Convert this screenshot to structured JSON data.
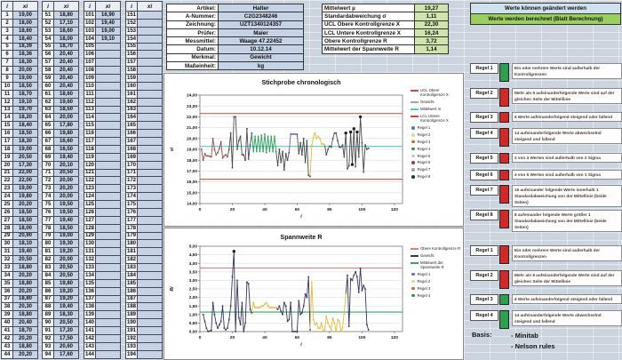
{
  "table": {
    "headers": {
      "index": "i",
      "value": "xi"
    },
    "groups": [
      {
        "start": 1
      },
      {
        "start": 51
      },
      {
        "start": 101
      },
      {
        "start": 151
      }
    ],
    "rows_visible": 44
  },
  "form": {
    "rows": [
      {
        "label": "Artikel:",
        "value": "Halter"
      },
      {
        "label": "A-Nummer:",
        "value": "C2G2348246"
      },
      {
        "label": "Zeichnung:",
        "value": "UZT1340124357"
      },
      {
        "label": "Prüfer:",
        "value": "Maier"
      },
      {
        "label": "Messmittel:",
        "value": "Waage 47.22452"
      },
      {
        "label": "Datum:",
        "value": "10.12.14"
      },
      {
        "label": "Merkmal:",
        "value": "Gewicht"
      },
      {
        "label": "Maßeinheit:",
        "value": "kg"
      }
    ]
  },
  "stats": {
    "rows": [
      {
        "label": "Mittelwert µ",
        "value": "19,27"
      },
      {
        "label": "Standardabweichung σ",
        "value": "1,11"
      },
      {
        "label": "UCL Obere Kontrollgrenze X",
        "value": "22,30"
      },
      {
        "label": "LCL Untere Kontrollgrenze X",
        "value": "16,24"
      },
      {
        "label": "Obere Kontrollgrenze R",
        "value": "3,72"
      },
      {
        "label": "Mittelwert der Spannweite R",
        "value": "1,14"
      }
    ]
  },
  "banner": {
    "line1": "Werte können geändert werden",
    "line2": "Werte werden berechnet (Blatt Berechnung)"
  },
  "colors": {
    "ok": "#2f9e4e",
    "violated": "#cf2a27",
    "cell_blue": "#c6d3e6",
    "cell_green": "#cfe5ad",
    "banner_blue": "#cfe0ef",
    "banner_green": "#9ace5e"
  },
  "rules_x": [
    {
      "name": "Regel 1",
      "status": "ok",
      "text": "Ein oder mehrere Werte sind außerhalb der Kontrollgrenzen"
    },
    {
      "name": "Regel 2",
      "status": "violated",
      "text": "Mehr als 9 aufeinanderfolgende Werte sind auf der gleichen Seite der Mittellinie"
    },
    {
      "name": "Regel 3",
      "status": "violated",
      "text": "6 Werte aufeinanderfolgend steigend oder fallend"
    },
    {
      "name": "Regel 4",
      "status": "violated",
      "text": "14 aufeinanderfolgende Werte abwechselnd steigend und fallend"
    },
    {
      "name": "Regel 5",
      "status": "violated",
      "text": "2 von 3 Werten sind außerhalb von 2 Sigma"
    },
    {
      "name": "Regel 6",
      "status": "violated",
      "text": "4 von 5 Werten sind außerhalb von 1 Sigma"
    },
    {
      "name": "Regel 7",
      "status": "violated",
      "text": "15 aufeinander folgende Werte innerhalb 1 Standardabweichung von der Mittellinie (beide Seiten)"
    },
    {
      "name": "Regel 8",
      "status": "violated",
      "text": "8 aufeinander folgende Werte größer 1 Standardabweichung von der Mittellinie (beide Seiten)"
    }
  ],
  "rules_r": [
    {
      "name": "Regel 1",
      "status": "violated",
      "text": "Ein oder mehrere Werte sind außerhalb der Kontrollgrenzen"
    },
    {
      "name": "Regel 2",
      "status": "violated",
      "text": "Mehr als 9 aufeinanderfolgende Werte sind auf der gleichen Seite der Mittellinie"
    },
    {
      "name": "Regel 3",
      "status": "ok",
      "text": "6 Werte aufeinanderfolgend steigend oder fallend"
    },
    {
      "name": "Regel 4",
      "status": "ok",
      "text": "14 aufeinanderfolgende Werte abwechselnd steigend und fallend"
    }
  ],
  "basis": {
    "label": "Basis:",
    "items": [
      "- Minitab",
      "- Nelson rules"
    ]
  },
  "chart_data": [
    {
      "type": "line",
      "title": "Stichprobe chronologisch",
      "xlabel": "i",
      "ylabel": "xi",
      "ylim": [
        14,
        24
      ],
      "ytick": 1,
      "xlim": [
        0,
        125
      ],
      "xticks": [
        0,
        20,
        40,
        60,
        80,
        100,
        120
      ],
      "grid": true,
      "legend_position": "right",
      "series": [
        {
          "name": "Gewicht",
          "color": "#4a4a4a",
          "x_start": 1,
          "values": [
            19.0,
            18.0,
            18.6,
            18.4,
            18.39,
            18.36,
            18.3,
            20.0,
            19.0,
            18.5,
            18.7,
            19.1,
            19.7,
            18.2,
            18.4,
            18.5,
            18.3,
            19.0,
            20.5,
            17.3,
            22.0,
            22.0,
            19.0,
            19.8,
            20.2,
            18.5,
            18.5,
            18.0,
            20.9,
            18.1,
            19.4,
            20.5,
            18.8,
            20.2,
            18.8,
            20.2,
            18.8,
            20.3,
            18.8,
            20.4,
            18.7,
            20.2,
            18.8,
            20.2,
            18.8,
            20.2,
            18.8,
            17.5,
            19.0,
            17.8,
            18.8,
            17.1,
            18.6,
            18.0,
            18.7,
            20.4,
            20.4,
            20.4,
            20.4,
            20.4,
            18.6,
            19.6,
            18.5,
            20.0,
            17.8,
            19.8,
            16.6,
            16.5,
            19.4,
            20.1,
            20.5,
            20.0,
            20.2,
            20.0,
            19.5,
            19.5,
            19.4,
            18.5,
            19.0,
            19.3,
            19.2,
            20.0,
            20.5,
            20.5,
            19.8,
            19.2,
            19.2,
            19.4,
            18.3,
            20.5,
            17.2,
            17.5,
            20.6,
            17.6,
            20.9,
            17.4,
            20.6,
            18.3,
            22.0,
            19.6,
            16.9,
            19.4,
            19.0,
            19.1
          ]
        }
      ],
      "ref_lines": [
        {
          "name": "UCL Obere Kontrollgrenze X",
          "value": 22.3,
          "color": "#c94a42"
        },
        {
          "name": "Mittelwert m",
          "value": 19.27,
          "color": "#56c7cb"
        },
        {
          "name": "LCL Untere Kontrollgrenze X",
          "value": 16.24,
          "color": "#c94a42"
        }
      ],
      "rule_segments": [
        {
          "from": 1,
          "to": 17,
          "color": "#a04848"
        },
        {
          "from": 33,
          "to": 47,
          "color": "#2f9e5e"
        },
        {
          "from": 56,
          "to": 60,
          "color": "#6a58a8"
        },
        {
          "from": 69,
          "to": 77,
          "color": "#e3ba3f"
        }
      ],
      "violation_dots": {
        "color": "#222222",
        "at": [
          90,
          93,
          94,
          95,
          97,
          99
        ]
      },
      "legend": [
        {
          "swatch": "line",
          "color": "#c94a42",
          "label": "UCL Obere Kontrollgrenze X"
        },
        {
          "swatch": "line",
          "color": "#a6a6a6",
          "label": "Gewicht"
        },
        {
          "swatch": "line",
          "color": "#56c7cb",
          "label": "Mittelwert m"
        },
        {
          "swatch": "line",
          "color": "#c94a42",
          "label": "LCL Untere Kontrollgrenze X"
        },
        {
          "swatch": "dot",
          "color": "#5b79a6",
          "label": "Regel 1"
        },
        {
          "swatch": "dot",
          "color": "#e6d690",
          "label": "Regel 2"
        },
        {
          "swatch": "dot",
          "color": "#cc6a2e",
          "label": "Regel 3"
        },
        {
          "swatch": "dot",
          "color": "#3a8a5a",
          "label": "Regel 4"
        },
        {
          "swatch": "dot",
          "color": "#c4c4d4",
          "label": "Regel 5"
        },
        {
          "swatch": "dot",
          "color": "#9a4040",
          "label": "Regel 6"
        },
        {
          "swatch": "dot",
          "color": "#a0a0a0",
          "label": "Regel 7"
        },
        {
          "swatch": "dot",
          "color": "#333333",
          "label": "Regel 8"
        }
      ]
    },
    {
      "type": "line",
      "title": "Spannweite R",
      "xlabel": "i",
      "ylabel": "Ri",
      "ylim": [
        0,
        5
      ],
      "ytick": 0.5,
      "xlim": [
        0,
        125
      ],
      "xticks": [
        0,
        20,
        40,
        60,
        80,
        100,
        120
      ],
      "grid": true,
      "legend_position": "right",
      "derivation": "moving range |xi - xi-1| of series in chart 1",
      "series": [
        {
          "name": "Gewicht",
          "color": "#35355a",
          "x_start": 2,
          "values": [
            1.0,
            0.6,
            0.2,
            0.01,
            0.03,
            0.06,
            1.7,
            1.0,
            0.5,
            0.2,
            0.4,
            0.6,
            1.5,
            0.2,
            0.1,
            0.2,
            0.7,
            1.5,
            3.2,
            4.7,
            0.0,
            3.0,
            0.8,
            0.4,
            1.7,
            0.0,
            0.5,
            2.9,
            2.8,
            1.3,
            1.1,
            1.7,
            1.4,
            1.4,
            1.4,
            1.4,
            1.5,
            1.5,
            1.6,
            1.7,
            1.5,
            1.4,
            1.4,
            1.4,
            1.4,
            1.4,
            1.3,
            1.5,
            1.2,
            1.0,
            1.7,
            1.5,
            0.6,
            0.7,
            1.7,
            0.0,
            0.0,
            0.0,
            0.0,
            1.8,
            1.0,
            1.1,
            1.5,
            2.2,
            2.0,
            3.2,
            0.1,
            2.9,
            0.7,
            0.4,
            0.5,
            0.2,
            0.2,
            0.5,
            0.0,
            0.1,
            0.9,
            0.5,
            0.3,
            0.1,
            0.8,
            0.5,
            0.0,
            0.7,
            0.6,
            0.0,
            0.2,
            1.1,
            2.2,
            3.3,
            0.3,
            3.1,
            3.0,
            3.3,
            3.5,
            3.2,
            2.3,
            3.7,
            2.4,
            2.7,
            2.5,
            0.4,
            0.1
          ]
        }
      ],
      "ref_lines": [
        {
          "name": "Obere Kontrollgrenze R",
          "value": 3.72,
          "color": "#e87f78"
        },
        {
          "name": "Mittelwert der Spannweite R",
          "value": 1.14,
          "color": "#3d9e68"
        }
      ],
      "rule_segments": [
        {
          "from": 33,
          "to": 47,
          "color": "#e3ba3f"
        },
        {
          "from": 69,
          "to": 90,
          "color": "#e3ba3f"
        }
      ],
      "violation_dots": {
        "color": "#222222",
        "at": [
          21
        ]
      },
      "legend": [
        {
          "swatch": "line",
          "color": "#e87f78",
          "label": "Obere Kontrollgrenze R"
        },
        {
          "swatch": "line",
          "color": "#35355a",
          "label": "Gewicht"
        },
        {
          "swatch": "line",
          "color": "#3d9e68",
          "label": "Mittelwert der Spannweite R"
        },
        {
          "swatch": "dot",
          "color": "#5b79a6",
          "label": "Regel 1"
        },
        {
          "swatch": "dot",
          "color": "#e6d690",
          "label": "Regel 2"
        },
        {
          "swatch": "dot",
          "color": "#cc6a2e",
          "label": "Regel 3"
        },
        {
          "swatch": "dot",
          "color": "#3a8a5a",
          "label": "Regel 4"
        }
      ]
    }
  ]
}
